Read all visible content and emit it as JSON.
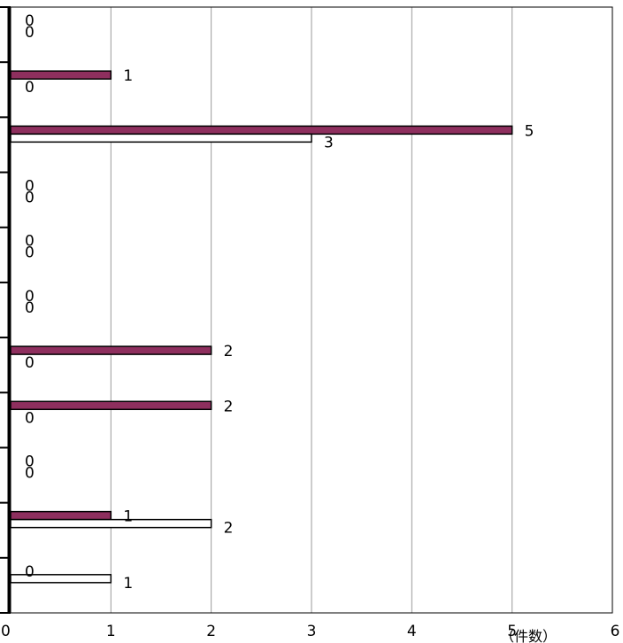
{
  "chart_data": {
    "type": "bar",
    "orientation": "horizontal",
    "xlim": [
      0,
      6
    ],
    "x_ticks": [
      "0",
      "1",
      "2",
      "3",
      "4",
      "5",
      "6"
    ],
    "x_unit_label": "（件数）",
    "grid": "vertical",
    "legend": "none",
    "categories": [
      "",
      "",
      "",
      "",
      "",
      "",
      "",
      "",
      "",
      "",
      ""
    ],
    "series": [
      {
        "values": [
          0,
          1,
          5,
          0,
          0,
          0,
          2,
          2,
          0,
          1,
          0
        ],
        "color": "#8e2f5e"
      },
      {
        "values": [
          0,
          0,
          3,
          0,
          0,
          0,
          0,
          0,
          0,
          2,
          1
        ],
        "color": "#ffffff"
      }
    ]
  }
}
